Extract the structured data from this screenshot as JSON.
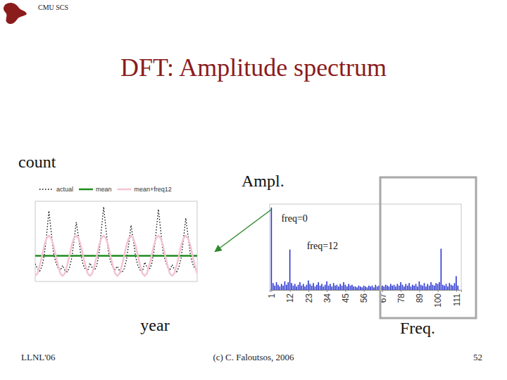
{
  "slide": {
    "header": "CMU SCS",
    "title": "DFT: Amplitude spectrum",
    "footer_left": "LLNL'06",
    "footer_center": "(c) C. Faloutsos, 2006",
    "page_number": "52"
  },
  "chart_data": [
    {
      "type": "line",
      "xlabel": "year",
      "ylabel": "count",
      "x": [
        1,
        2,
        3,
        4,
        5,
        6,
        7,
        8,
        9,
        10,
        11,
        12,
        13,
        14,
        15,
        16,
        17,
        18,
        19,
        20,
        21,
        22,
        23,
        24,
        25,
        26,
        27,
        28,
        29,
        30,
        31,
        32,
        33,
        34,
        35,
        36,
        37,
        38,
        39,
        40,
        41,
        42,
        43,
        44,
        45,
        46,
        47,
        48,
        49,
        50,
        51,
        52,
        53,
        54,
        55,
        56,
        57,
        58,
        59,
        60,
        61,
        62,
        63,
        64,
        65,
        66,
        67,
        68,
        69,
        70,
        71,
        72
      ],
      "series": [
        {
          "name": "actual",
          "color": "#000000",
          "line_style": "dotted",
          "values": [
            22,
            16,
            13,
            19,
            33,
            58,
            88,
            62,
            36,
            24,
            17,
            14,
            20,
            14,
            12,
            17,
            29,
            50,
            74,
            55,
            33,
            21,
            15,
            13,
            23,
            17,
            14,
            20,
            35,
            64,
            93,
            66,
            38,
            25,
            18,
            15,
            19,
            13,
            11,
            16,
            27,
            47,
            70,
            52,
            31,
            20,
            14,
            12,
            24,
            18,
            15,
            21,
            36,
            62,
            90,
            64,
            37,
            26,
            18,
            14,
            21,
            15,
            12,
            18,
            30,
            53,
            79,
            57,
            34,
            22,
            16,
            13
          ]
        },
        {
          "name": "mean",
          "color": "#1e8c1e",
          "line_style": "solid",
          "values": [
            32,
            32,
            32,
            32,
            32,
            32,
            32,
            32,
            32,
            32,
            32,
            32,
            32,
            32,
            32,
            32,
            32,
            32,
            32,
            32,
            32,
            32,
            32,
            32,
            32,
            32,
            32,
            32,
            32,
            32,
            32,
            32,
            32,
            32,
            32,
            32,
            32,
            32,
            32,
            32,
            32,
            32,
            32,
            32,
            32,
            32,
            32,
            32,
            32,
            32,
            32,
            32,
            32,
            32,
            32,
            32,
            32,
            32,
            32,
            32,
            32,
            32,
            32,
            32,
            32,
            32,
            32,
            32,
            32,
            32,
            32,
            32
          ]
        },
        {
          "name": "mean+freq12",
          "color": "#f3c4d2",
          "line_style": "solid",
          "values": [
            7,
            10,
            20,
            32,
            45,
            54,
            57,
            54,
            45,
            32,
            20,
            10,
            7,
            10,
            20,
            32,
            45,
            54,
            57,
            54,
            45,
            32,
            20,
            10,
            7,
            10,
            20,
            32,
            45,
            54,
            57,
            54,
            45,
            32,
            20,
            10,
            7,
            10,
            20,
            32,
            45,
            54,
            57,
            54,
            45,
            32,
            20,
            10,
            7,
            10,
            20,
            32,
            45,
            54,
            57,
            54,
            45,
            32,
            20,
            10,
            7,
            10,
            20,
            32,
            45,
            54,
            57,
            54,
            45,
            32,
            20,
            10
          ]
        }
      ],
      "xlim": [
        1,
        72
      ],
      "ylim": [
        0,
        100
      ],
      "tick_labels": false,
      "legend": "top"
    },
    {
      "type": "bar",
      "xlabel": "Freq.",
      "ylabel": "Ampl.",
      "x": [
        1,
        2,
        3,
        4,
        5,
        6,
        7,
        8,
        9,
        10,
        11,
        12,
        13,
        14,
        15,
        16,
        17,
        18,
        19,
        20,
        21,
        22,
        23,
        24,
        25,
        26,
        27,
        28,
        29,
        30,
        31,
        32,
        33,
        34,
        35,
        36,
        37,
        38,
        39,
        40,
        41,
        42,
        43,
        44,
        45,
        46,
        47,
        48,
        49,
        50,
        51,
        52,
        53,
        54,
        55,
        56,
        57,
        58,
        59,
        60,
        61,
        62,
        63,
        64,
        65,
        66,
        67,
        68,
        69,
        70,
        71,
        72,
        73,
        74,
        75,
        76,
        77,
        78,
        79,
        80,
        81,
        82,
        83,
        84,
        85,
        86,
        87,
        88,
        89,
        90,
        91,
        92,
        93,
        94,
        95,
        96,
        97,
        98,
        99,
        100,
        101,
        102,
        103,
        104,
        105,
        106,
        107,
        108,
        109,
        110,
        111,
        112
      ],
      "values": [
        96,
        8,
        5,
        9,
        6,
        4,
        7,
        5,
        10,
        6,
        9,
        47,
        8,
        5,
        7,
        4,
        6,
        9,
        5,
        7,
        4,
        6,
        11,
        7,
        5,
        8,
        4,
        6,
        9,
        5,
        7,
        4,
        6,
        10,
        5,
        7,
        4,
        8,
        5,
        6,
        4,
        7,
        5,
        9,
        6,
        4,
        7,
        5,
        6,
        4,
        4,
        3,
        5,
        4,
        3,
        5,
        4,
        3,
        5,
        4,
        5,
        3,
        6,
        4,
        5,
        3,
        5,
        4,
        6,
        5,
        4,
        7,
        5,
        6,
        4,
        7,
        5,
        9,
        6,
        4,
        7,
        5,
        8,
        4,
        6,
        5,
        7,
        4,
        10,
        6,
        5,
        8,
        4,
        7,
        5,
        9,
        6,
        5,
        8,
        7,
        9,
        48,
        6,
        5,
        7,
        4,
        8,
        6,
        5,
        8,
        16,
        5
      ],
      "color": "#2a35d0",
      "xlim": [
        0,
        114
      ],
      "ylim": [
        0,
        100
      ],
      "xticks": [
        1,
        12,
        23,
        34,
        45,
        56,
        67,
        78,
        89,
        100,
        111
      ],
      "tick_labels": "x",
      "annotations": [
        {
          "text": "freq=0",
          "x": 1
        },
        {
          "text": "freq=12",
          "x": 12
        }
      ]
    }
  ]
}
